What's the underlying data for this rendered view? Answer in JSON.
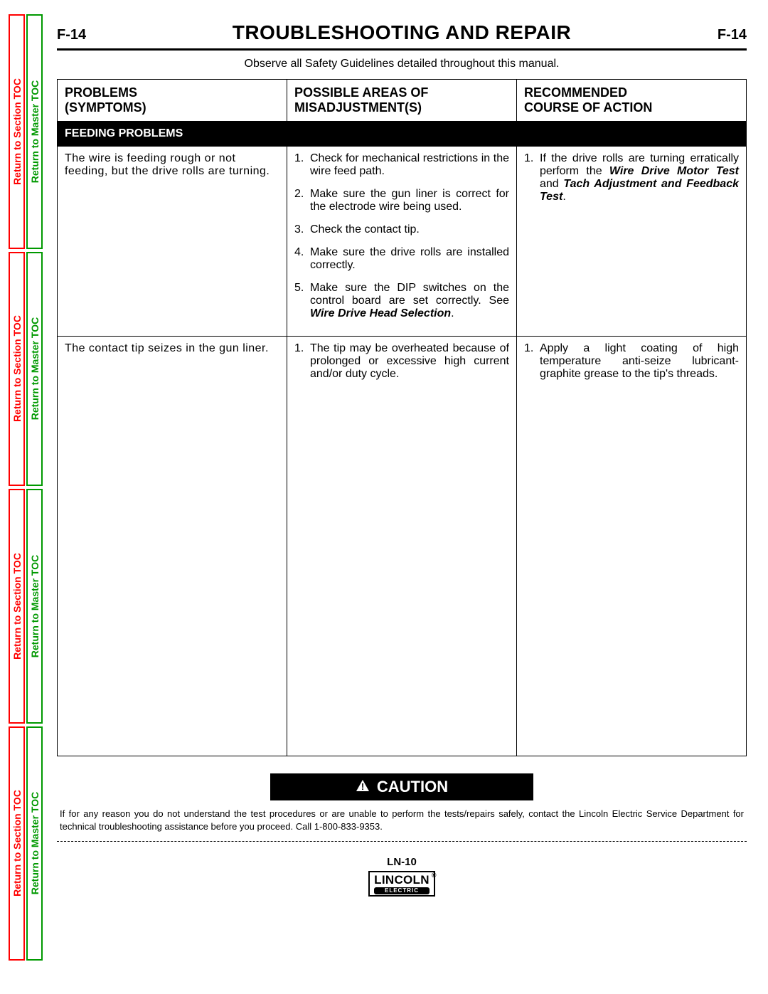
{
  "sideTabs": {
    "sectionLabel": "Return to Section TOC",
    "masterLabel": "Return to Master TOC",
    "colors": {
      "section": "#ff0000",
      "master": "#009900"
    },
    "repeats": 4
  },
  "header": {
    "pageCodeLeft": "F-14",
    "title": "TROUBLESHOOTING AND REPAIR",
    "pageCodeRight": "F-14"
  },
  "safetyLine": "Observe all Safety Guidelines detailed throughout this manual.",
  "table": {
    "columns": [
      {
        "line1": "PROBLEMS",
        "line2": "(SYMPTOMS)"
      },
      {
        "line1": "POSSIBLE AREAS OF",
        "line2": "MISADJUSTMENT(S)"
      },
      {
        "line1": "RECOMMENDED",
        "line2": "COURSE  OF  ACTION"
      }
    ],
    "sectionTitle": "FEEDING PROBLEMS",
    "rows": [
      {
        "problem": "The wire is feeding rough or not feeding, but the drive rolls are turning.",
        "misadjust": [
          "Check for mechanical restrictions in the wire feed path.",
          "Make sure the gun liner is correct for the electrode wire being used.",
          "Check the contact tip.",
          "Make sure the drive rolls are installed correctly.",
          "Make sure the DIP switches on the control board are set correctly. See <span class='bi'>Wire Drive Head Selection</span>."
        ],
        "action": [
          "If the drive rolls are turning erratically perform the <span class='bi'>Wire Drive Motor Test</span> and <span class='bi'>Tach Adjustment and Feedback Test</span>."
        ]
      },
      {
        "problem": "The contact tip seizes in the gun liner.",
        "misadjust": [
          "The tip may be overheated because of prolonged or excessive high current and/or duty cycle."
        ],
        "action": [
          "Apply a light coating of high temperature anti-seize lubricant-graphite grease to the tip's threads."
        ]
      }
    ]
  },
  "caution": {
    "label": "CAUTION",
    "text": "If for any reason you do not understand the test procedures or are unable to perform the tests/repairs safely, contact the Lincoln Electric Service Department for technical troubleshooting assistance before you proceed. Call 1-800-833-9353."
  },
  "footer": {
    "modelCode": "LN-10",
    "logoTop": "LINCOLN",
    "logoBottom": "ELECTRIC"
  },
  "style": {
    "pageWidth": 1080,
    "pageHeight": 1397,
    "bodyFont": "Arial",
    "titleFontSize": 28,
    "headerFontSize": 18,
    "bodyFontSize": 16,
    "cautionFontSize": 22,
    "disclaimerFontSize": 13,
    "background": "#ffffff",
    "text": "#000000",
    "sectionRowBg": "#000000",
    "sectionRowFg": "#ffffff",
    "borderWidth": 1.5
  }
}
